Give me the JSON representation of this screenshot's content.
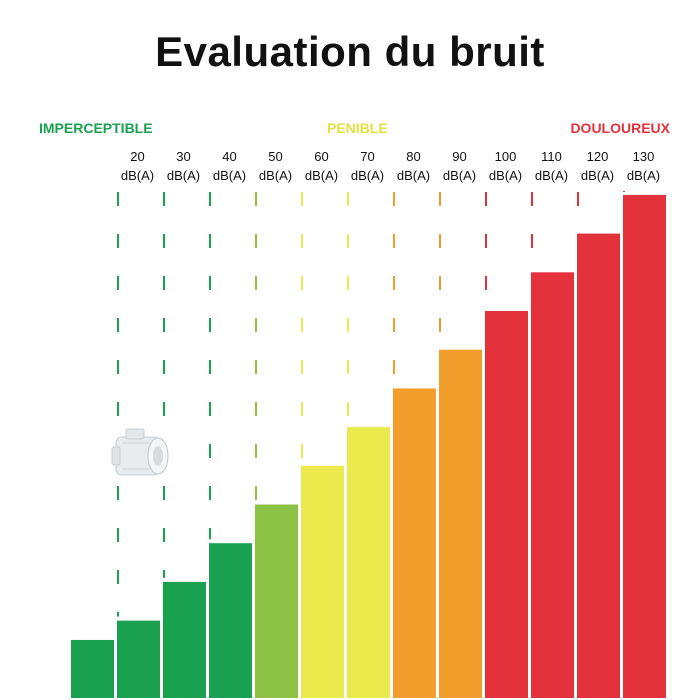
{
  "chart_data": {
    "type": "bar",
    "title": "Evaluation du bruit",
    "zones": [
      {
        "label": "IMPERCEPTIBLE",
        "color": "#1aa14f"
      },
      {
        "label": "PENIBLE",
        "color": "#e2e244"
      },
      {
        "label": "DOULOUREUX",
        "color": "#e3323c"
      }
    ],
    "unit": "dB(A)",
    "categories": [
      "",
      "20",
      "30",
      "40",
      "50",
      "60",
      "70",
      "80",
      "90",
      "100",
      "110",
      "120",
      "130"
    ],
    "values": [
      15,
      20,
      30,
      40,
      50,
      60,
      70,
      80,
      90,
      100,
      110,
      120,
      130
    ],
    "colors": [
      "#1aa14f",
      "#1aa14f",
      "#1aa14f",
      "#1aa14f",
      "#8bc145",
      "#eaea4c",
      "#eaea4c",
      "#f39e2c",
      "#f39e2c",
      "#e3323c",
      "#e3323c",
      "#e3323c",
      "#e3323c"
    ],
    "ylim": [
      0,
      135
    ],
    "grid": "dashed vertical",
    "product_icon": "ventilation-fan-icon"
  }
}
